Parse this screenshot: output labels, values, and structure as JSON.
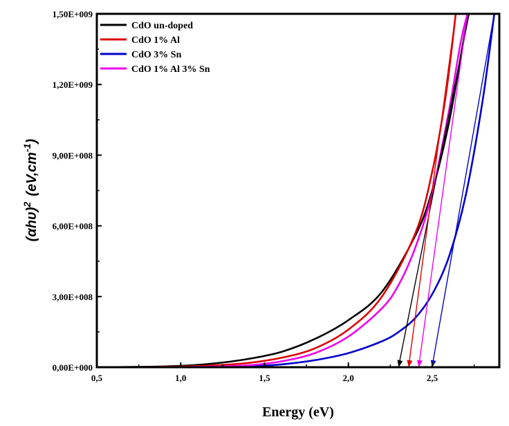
{
  "chart_data": {
    "type": "line",
    "title": "",
    "xlabel": "Energy (eV)",
    "ylabel": {
      "prefix": "(αhυ)",
      "sup": "2",
      "units_pre": "(eV,cm",
      "units_sup": "-1",
      "units_post": ")"
    },
    "xlim": [
      0.5,
      2.9
    ],
    "ylim": [
      0,
      1500000000
    ],
    "x_ticks": [
      0.5,
      1.0,
      1.5,
      2.0,
      2.5
    ],
    "x_tick_labels": [
      "0,5",
      "1,0",
      "1,5",
      "2,0",
      "2,5"
    ],
    "y_ticks": [
      0,
      300000000,
      600000000,
      900000000,
      1200000000,
      1500000000
    ],
    "y_tick_labels": [
      "0,00E+000",
      "3,00E+008",
      "6,00E+008",
      "9,00E+008",
      "1,20E+009",
      "1,50E+009"
    ],
    "legend_position": "top-left",
    "series": [
      {
        "name": "CdO un-doped",
        "color": "#000000",
        "x": [
          0.5,
          0.8,
          1.0,
          1.2,
          1.4,
          1.6,
          1.8,
          2.0,
          2.2,
          2.4,
          2.5,
          2.6,
          2.7,
          2.72
        ],
        "y": [
          0,
          2000000,
          6000000,
          16000000,
          35000000,
          65000000,
          120000000,
          200000000,
          320000000,
          560000000,
          750000000,
          1040000000,
          1440000000,
          1500000000
        ],
        "tangent": {
          "x_intercept": 2.3,
          "top": [
            2.72,
            1500000000
          ]
        }
      },
      {
        "name": "CdO 1% Al",
        "color": "#dd0000",
        "x": [
          0.5,
          0.8,
          1.0,
          1.2,
          1.4,
          1.6,
          1.8,
          2.0,
          2.2,
          2.4,
          2.5,
          2.58,
          2.64
        ],
        "y": [
          0,
          1000000,
          3000000,
          8000000,
          18000000,
          40000000,
          80000000,
          160000000,
          300000000,
          570000000,
          830000000,
          1150000000,
          1500000000
        ],
        "tangent": {
          "x_intercept": 2.36,
          "top": [
            2.64,
            1500000000
          ]
        }
      },
      {
        "name": "CdO 3% Sn",
        "color": "#0000cc",
        "x": [
          0.5,
          1.0,
          1.4,
          1.6,
          1.8,
          2.0,
          2.2,
          2.3,
          2.4,
          2.5,
          2.6,
          2.7,
          2.8,
          2.87
        ],
        "y": [
          0,
          0,
          4000000,
          12000000,
          30000000,
          60000000,
          110000000,
          150000000,
          210000000,
          310000000,
          470000000,
          730000000,
          1130000000,
          1500000000
        ],
        "tangent": {
          "x_intercept": 2.5,
          "top": [
            2.87,
            1500000000
          ]
        }
      },
      {
        "name": "CdO 1% Al 3% Sn",
        "color": "#ee00ee",
        "x": [
          0.5,
          1.0,
          1.2,
          1.4,
          1.6,
          1.8,
          2.0,
          2.2,
          2.3,
          2.4,
          2.5,
          2.6,
          2.67,
          2.71
        ],
        "y": [
          0,
          1000000,
          3000000,
          8000000,
          25000000,
          60000000,
          130000000,
          250000000,
          350000000,
          510000000,
          740000000,
          1090000000,
          1380000000,
          1500000000
        ],
        "tangent": {
          "x_intercept": 2.42,
          "top": [
            2.71,
            1500000000
          ]
        }
      }
    ]
  }
}
